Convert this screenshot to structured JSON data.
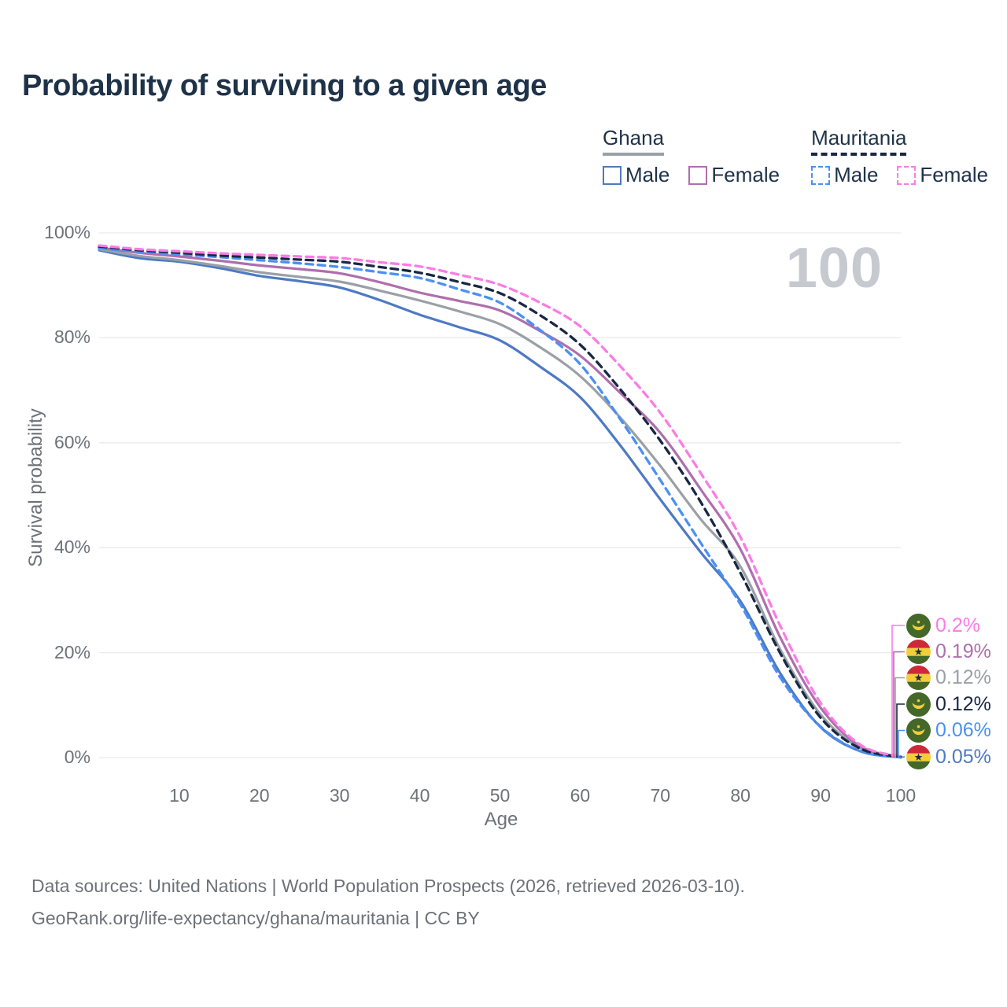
{
  "title": "Probability of surviving to a given age",
  "watermark": "100",
  "legend": {
    "groups": [
      {
        "name": "Ghana",
        "items": [
          {
            "label": "Male"
          },
          {
            "label": "Female"
          }
        ]
      },
      {
        "name": "Mauritania",
        "items": [
          {
            "label": "Male"
          },
          {
            "label": "Female"
          }
        ]
      }
    ]
  },
  "footer": {
    "line1": "Data sources: United Nations | World Population Prospects (2026, retrieved 2026-03-10).",
    "line2": "GeoRank.org/life-expectancy/ghana/mauritania | CC BY"
  },
  "colors": {
    "ghana_male": "#4e79c4",
    "ghana_both": "#9aa0a6",
    "ghana_female": "#ae6fad",
    "mauritania_male": "#4a90f5",
    "mauritania_both": "#182843",
    "mauritania_female": "#fb7ce5",
    "title_text": "#1e3248",
    "axis_text": "#6d7278",
    "grid": "#e9eaec",
    "watermark": "#c6c9cf",
    "flag_green": "#44682a",
    "flag_yellow": "#f1ce3b",
    "flag_red": "#ce2939",
    "flag_star": "#1b2b4a"
  },
  "chart_data": {
    "type": "line",
    "title": "Probability of surviving to a given age",
    "xlabel": "Age",
    "ylabel": "Survival probability",
    "xlim": [
      0,
      100
    ],
    "ylim": [
      0,
      100
    ],
    "grid": "horizontal",
    "legend_position": "top-right",
    "x_ticks": [
      10,
      20,
      30,
      40,
      50,
      60,
      70,
      80,
      90,
      100
    ],
    "y_ticks": [
      0,
      20,
      40,
      60,
      80,
      100
    ],
    "y_tick_suffix": "%",
    "x": [
      0,
      5,
      10,
      15,
      20,
      25,
      30,
      35,
      40,
      45,
      50,
      55,
      60,
      65,
      70,
      75,
      80,
      85,
      90,
      95,
      100
    ],
    "series": [
      {
        "id": "ghana-male",
        "country": "Ghana",
        "sex": "Male",
        "color_key": "ghana_male",
        "dashed": false,
        "end_label": "0.05%",
        "label_rank": 5,
        "flag": "ghana",
        "values": [
          96.7,
          95.2,
          94.5,
          93.3,
          91.8,
          90.8,
          89.6,
          87.2,
          84.4,
          82.0,
          79.5,
          74.5,
          68.7,
          59.5,
          49.2,
          39.2,
          29.8,
          16.0,
          5.8,
          1.2,
          0.05
        ]
      },
      {
        "id": "ghana-both",
        "country": "Ghana",
        "sex": "Both sexes",
        "color_key": "ghana_both",
        "dashed": false,
        "end_label": "0.12%",
        "label_rank": 2,
        "flag": "ghana",
        "values": [
          96.9,
          95.6,
          94.8,
          93.7,
          92.5,
          91.6,
          90.7,
          89.0,
          87.1,
          85.0,
          82.6,
          78.2,
          72.7,
          64.8,
          55.6,
          45.5,
          36.4,
          20.5,
          8.2,
          1.8,
          0.12
        ]
      },
      {
        "id": "ghana-female",
        "country": "Ghana",
        "sex": "Female",
        "color_key": "ghana_female",
        "dashed": false,
        "end_label": "0.19%",
        "label_rank": 1,
        "flag": "ghana",
        "values": [
          97.2,
          96.2,
          95.5,
          94.7,
          93.8,
          93.1,
          92.3,
          90.6,
          88.6,
          87.0,
          85.2,
          81.3,
          76.6,
          69.5,
          61.9,
          51.2,
          39.7,
          22.8,
          9.5,
          2.1,
          0.19
        ]
      },
      {
        "id": "mauritania-male",
        "country": "Mauritania",
        "sex": "Male",
        "color_key": "mauritania_male",
        "dashed": true,
        "end_label": "0.06%",
        "label_rank": 4,
        "flag": "mauritania",
        "values": [
          97.1,
          96.4,
          95.9,
          95.4,
          94.8,
          94.2,
          93.5,
          92.5,
          91.4,
          89.2,
          86.7,
          81.5,
          75.0,
          64.5,
          52.9,
          41.0,
          29.2,
          15.2,
          5.9,
          1.2,
          0.06
        ]
      },
      {
        "id": "mauritania-both",
        "country": "Mauritania",
        "sex": "Both sexes",
        "color_key": "mauritania_both",
        "dashed": true,
        "end_label": "0.12%",
        "label_rank": 3,
        "flag": "mauritania",
        "values": [
          97.4,
          96.7,
          96.2,
          95.7,
          95.3,
          94.9,
          94.5,
          93.5,
          92.4,
          90.6,
          88.5,
          84.3,
          78.7,
          70.2,
          60.4,
          48.8,
          35.2,
          19.8,
          7.6,
          1.7,
          0.12
        ]
      },
      {
        "id": "mauritania-female",
        "country": "Mauritania",
        "sex": "Female",
        "color_key": "mauritania_female",
        "dashed": true,
        "end_label": "0.2%",
        "label_rank": 0,
        "flag": "mauritania",
        "values": [
          97.6,
          96.9,
          96.5,
          96.1,
          95.8,
          95.5,
          95.2,
          94.4,
          93.6,
          92.0,
          90.1,
          86.7,
          82.2,
          74.6,
          65.7,
          54.3,
          42.0,
          25.0,
          10.4,
          2.4,
          0.2
        ]
      }
    ]
  }
}
